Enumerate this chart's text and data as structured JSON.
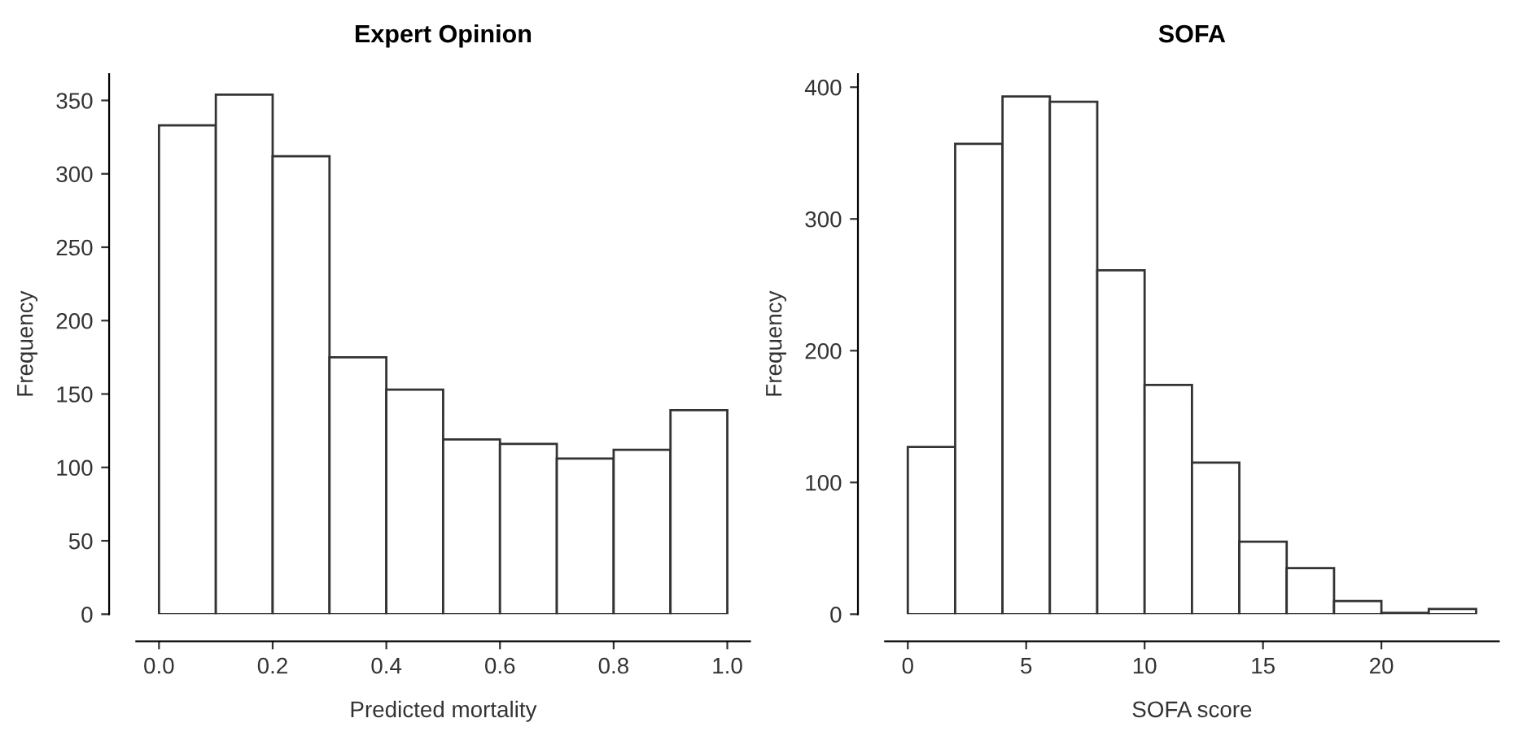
{
  "chart_data": [
    {
      "type": "histogram",
      "title": "Expert Opinion",
      "xlabel": "Predicted mortality",
      "ylabel": "Frequency",
      "color": "#ffffff",
      "bins": [
        0.0,
        0.1,
        0.2,
        0.3,
        0.4,
        0.5,
        0.6,
        0.7,
        0.8,
        0.9,
        1.0
      ],
      "values": [
        333,
        354,
        312,
        175,
        153,
        119,
        116,
        106,
        112,
        139
      ],
      "xlim": [
        -0.04,
        1.04
      ],
      "xticks": [
        {
          "value": 0,
          "label": "0.0"
        },
        0.2,
        0.4,
        0.6,
        0.8,
        {
          "value": 1,
          "label": "1.0"
        }
      ],
      "ylim": [
        0,
        368
      ],
      "yticks": [
        0,
        50,
        100,
        150,
        200,
        250,
        300,
        350
      ],
      "grid": false,
      "legend": false
    },
    {
      "type": "histogram",
      "title": "SOFA",
      "xlabel": "SOFA score",
      "ylabel": "Frequency",
      "color": "#ffffff",
      "bins": [
        0,
        2,
        4,
        6,
        8,
        10,
        12,
        14,
        16,
        18,
        20,
        22,
        24
      ],
      "values": [
        127,
        357,
        393,
        389,
        261,
        174,
        115,
        55,
        35,
        10,
        1,
        4
      ],
      "xlim": [
        -0.96,
        24.96
      ],
      "xticks": [
        0,
        5,
        10,
        15,
        20
      ],
      "ylim": [
        0,
        410
      ],
      "yticks": [
        0,
        100,
        200,
        300,
        400
      ],
      "grid": false,
      "legend": false
    }
  ]
}
